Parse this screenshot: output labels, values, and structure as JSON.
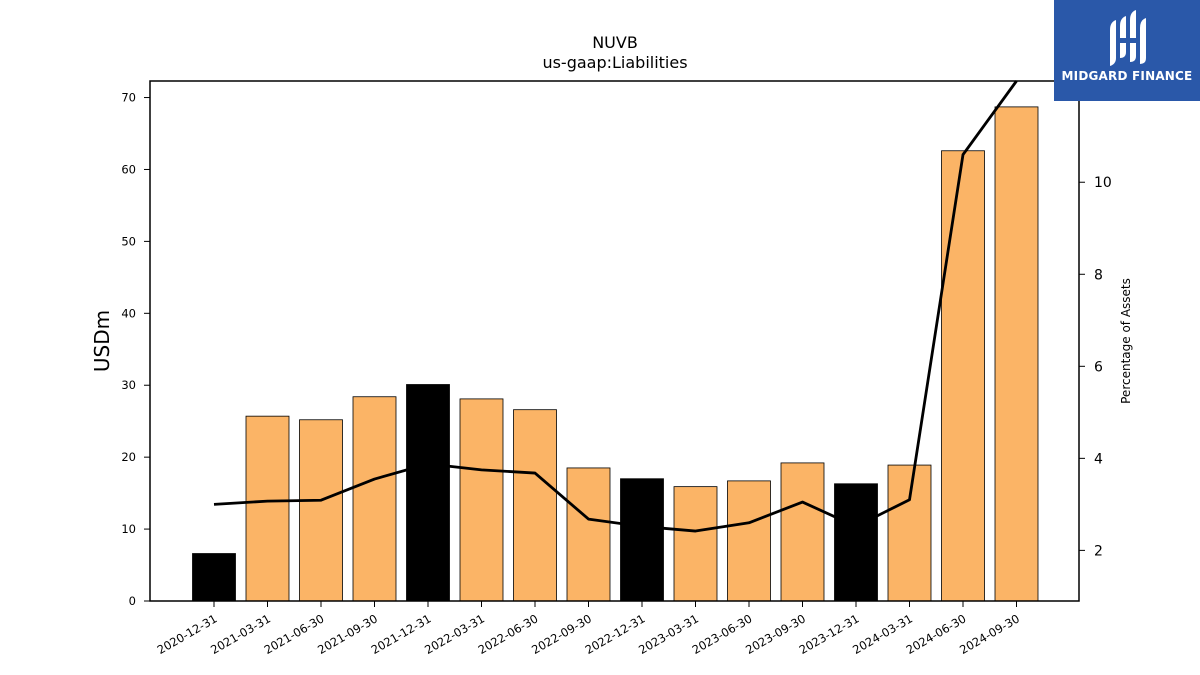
{
  "chart_data": {
    "type": "bar",
    "title": "NUVB",
    "subtitle": "us-gaap:Liabilities",
    "ylabel": "USDm",
    "y2label": "Percentage of Assets",
    "ylim": [
      0,
      72.3
    ],
    "y2lim": [
      0.9,
      12.2
    ],
    "yticks": [
      0,
      10,
      20,
      30,
      40,
      50,
      60,
      70
    ],
    "y2ticks": [
      2,
      4,
      6,
      8,
      10
    ],
    "categories": [
      "2020-12-31",
      "2021-03-31",
      "2021-06-30",
      "2021-09-30",
      "2021-12-31",
      "2022-03-31",
      "2022-06-30",
      "2022-09-30",
      "2022-12-31",
      "2023-03-31",
      "2023-06-30",
      "2023-09-30",
      "2023-12-31",
      "2024-03-31",
      "2024-06-30",
      "2024-09-30"
    ],
    "series": [
      {
        "type": "bar",
        "values": [
          6.6,
          25.7,
          25.2,
          28.4,
          30.1,
          28.1,
          26.6,
          18.5,
          17.0,
          15.9,
          16.7,
          19.2,
          16.3,
          18.9,
          62.6,
          68.7
        ],
        "colors": [
          "#000000",
          "#fbb466",
          "#fbb466",
          "#fbb466",
          "#000000",
          "#fbb466",
          "#fbb466",
          "#fbb466",
          "#000000",
          "#fbb466",
          "#fbb466",
          "#fbb466",
          "#000000",
          "#fbb466",
          "#fbb466",
          "#fbb466"
        ]
      },
      {
        "type": "line",
        "axis": "right",
        "values": [
          3.0,
          3.07,
          3.09,
          3.55,
          3.88,
          3.75,
          3.68,
          2.68,
          2.52,
          2.42,
          2.6,
          3.05,
          2.52,
          3.1,
          10.6,
          12.2
        ],
        "color": "#000000"
      }
    ],
    "grid": false,
    "legend": "none"
  },
  "logo": {
    "text": "MIDGARD FINANCE",
    "icon": "midgard-logo-icon",
    "background": "#2a58a9"
  }
}
